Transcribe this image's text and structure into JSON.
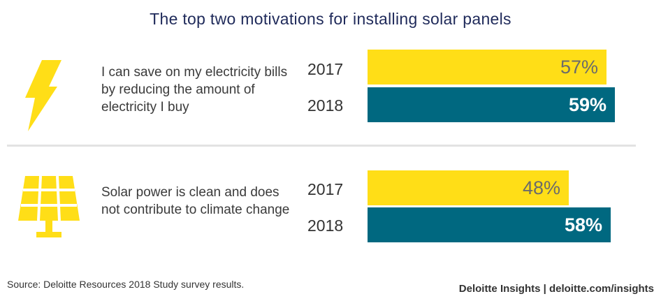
{
  "title": "The top two motivations for installing solar panels",
  "chart_data": {
    "type": "bar",
    "orientation": "horizontal",
    "title": "The top two motivations for installing solar panels",
    "series_years": [
      "2017",
      "2018"
    ],
    "groups": [
      {
        "label": "I can save on my electricity bills by reducing the amount of electricity I buy",
        "icon": "lightning-icon",
        "values": [
          {
            "year": "2017",
            "value": 57,
            "label": "57%"
          },
          {
            "year": "2018",
            "value": 59,
            "label": "59%"
          }
        ]
      },
      {
        "label": "Solar power is clean and does not contribute to climate change",
        "icon": "solar-panel-icon",
        "values": [
          {
            "year": "2017",
            "value": 48,
            "label": "48%"
          },
          {
            "year": "2018",
            "value": 58,
            "label": "58%"
          }
        ]
      }
    ],
    "colors": {
      "2017": "#FFDE17",
      "2018": "#006880"
    }
  },
  "footer": {
    "source": "Source: Deloitte Resources 2018 Study survey results.",
    "brand": "Deloitte Insights | deloitte.com/insights"
  }
}
